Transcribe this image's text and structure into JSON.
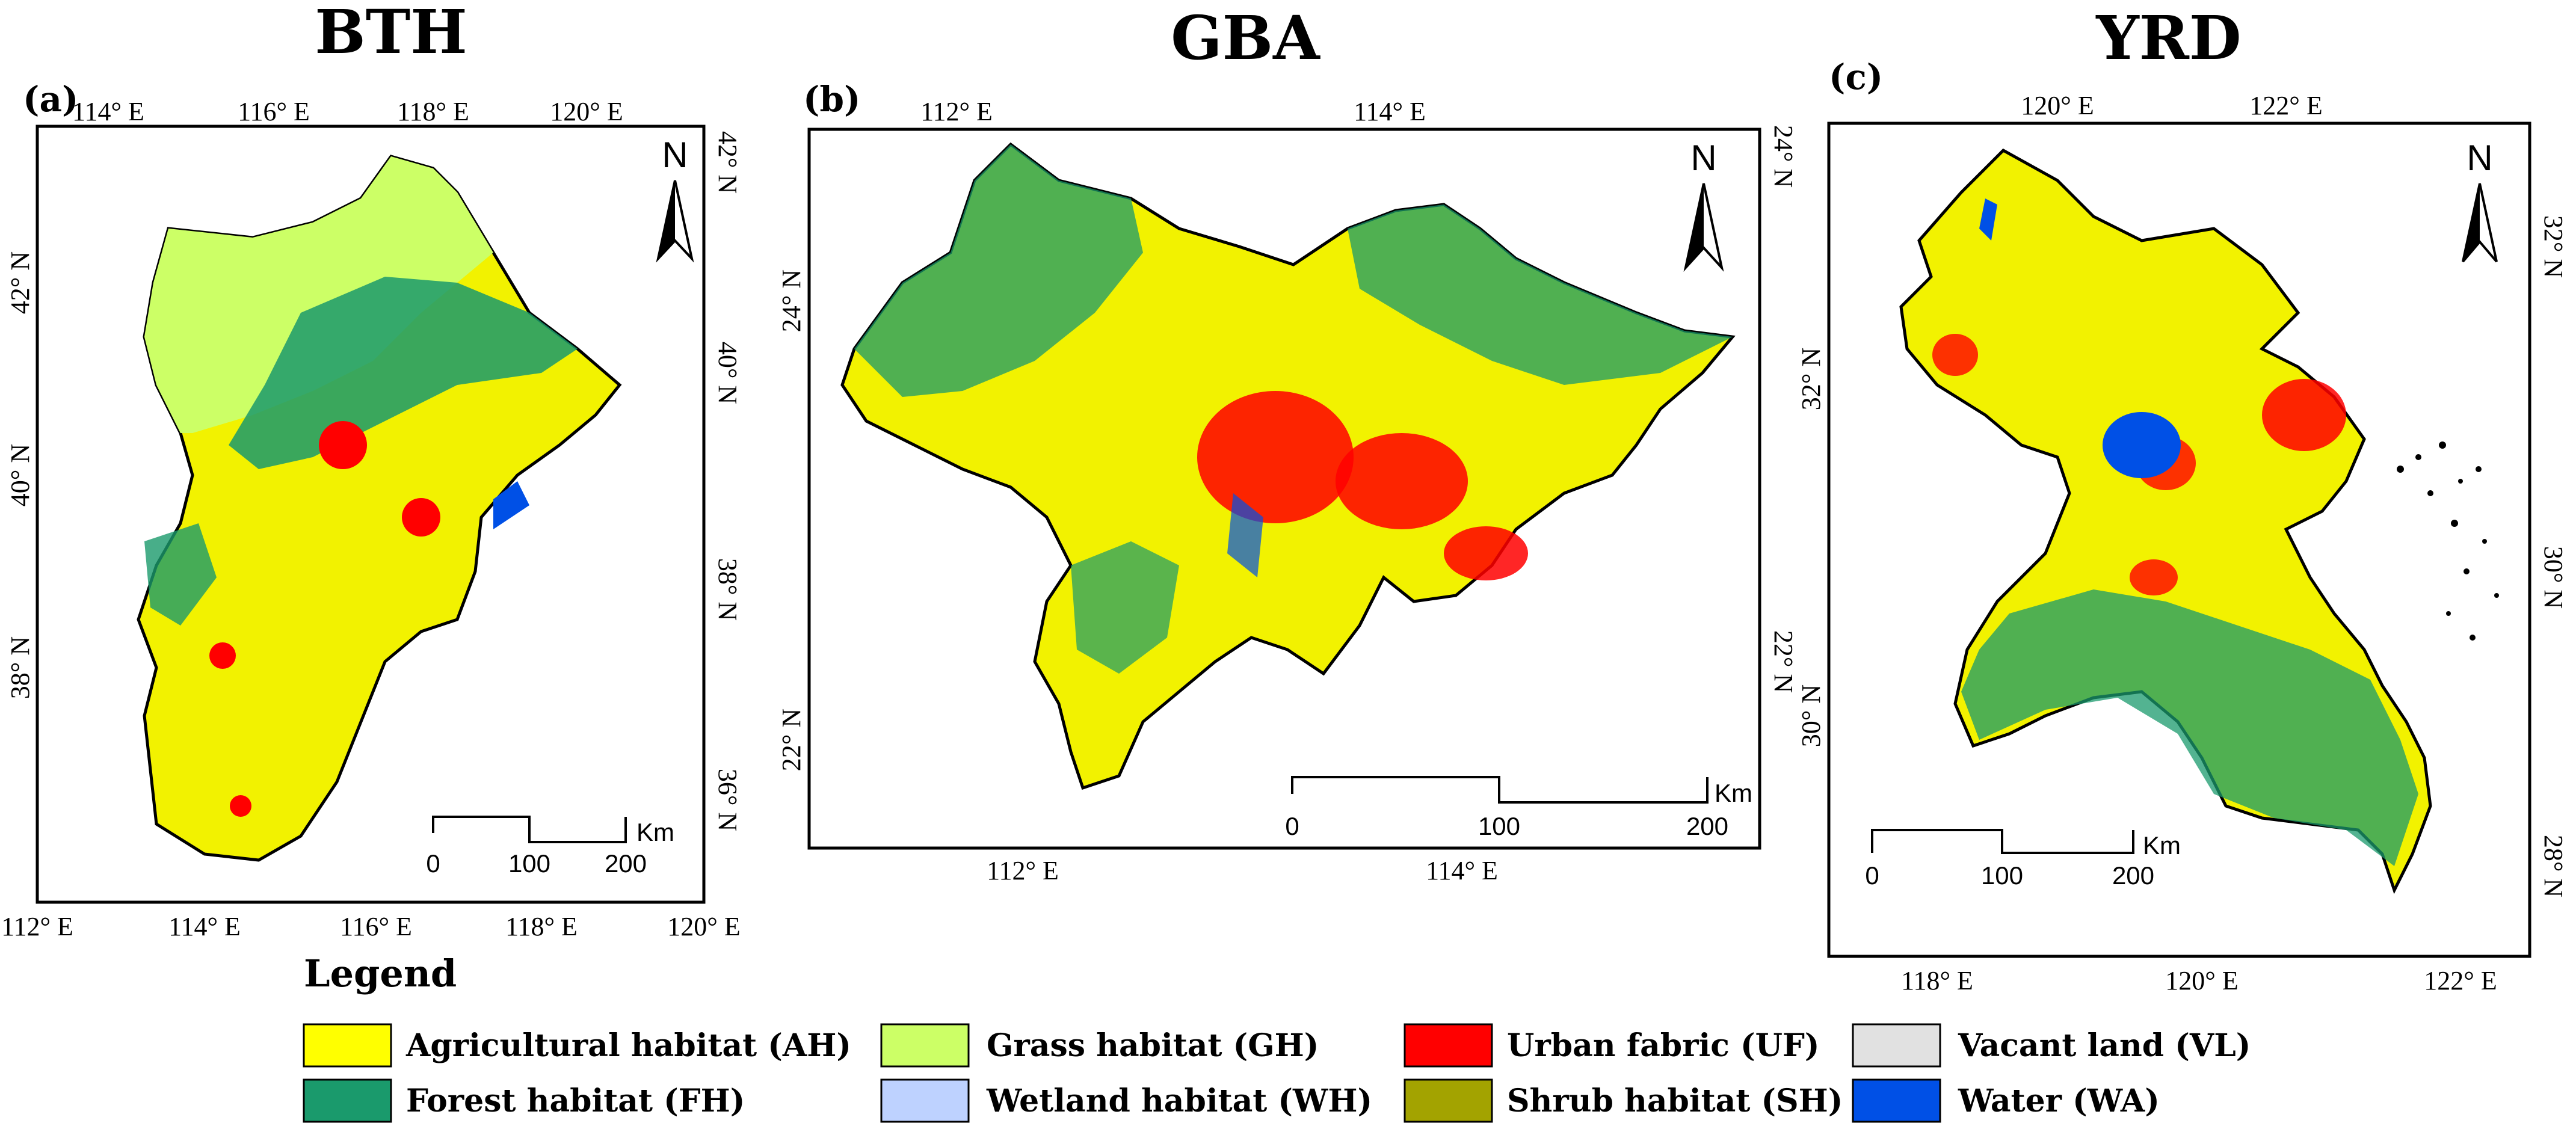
{
  "regions": [
    {
      "title": "BTH",
      "label": "(a)",
      "top_ticks": [
        "114° E",
        "116° E",
        "118° E",
        "120° E"
      ],
      "bottom_ticks": [
        "112° E",
        "114° E",
        "116° E",
        "118° E",
        "120° E"
      ],
      "left_ticks": [
        "42° N",
        "40° N",
        "38° N"
      ],
      "right_ticks": [
        "42° N",
        "40° N",
        "38° N",
        "36° N"
      ],
      "north": "N",
      "scale": {
        "labels": [
          "0",
          "100",
          "200"
        ],
        "unit": "Km"
      }
    },
    {
      "title": "GBA",
      "label": "(b)",
      "top_ticks": [
        "112° E",
        "114° E"
      ],
      "bottom_ticks": [
        "112° E",
        "114° E"
      ],
      "left_ticks": [
        "24° N",
        "22° N"
      ],
      "right_ticks": [
        "24° N",
        "22° N"
      ],
      "north": "N",
      "scale": {
        "labels": [
          "0",
          "100",
          "200"
        ],
        "unit": "Km"
      }
    },
    {
      "title": "YRD",
      "label": "(c)",
      "top_ticks": [
        "120° E",
        "122° E"
      ],
      "bottom_ticks": [
        "118° E",
        "120° E",
        "122° E"
      ],
      "left_ticks": [
        "32° N",
        "30° N"
      ],
      "right_ticks": [
        "32° N",
        "30° N",
        "28° N"
      ],
      "north": "N",
      "scale": {
        "labels": [
          "0",
          "100",
          "200"
        ],
        "unit": "Km"
      }
    }
  ],
  "legend": {
    "title": "Legend",
    "items": [
      {
        "label": "Agricultural habitat (AH)",
        "color": "#FFFF00"
      },
      {
        "label": "Forest habitat (FH)",
        "color": "#1A9A6C"
      },
      {
        "label": "Grass habitat (GH)",
        "color": "#CCFF66"
      },
      {
        "label": "Wetland habitat (WH)",
        "color": "#BED2FF"
      },
      {
        "label": "Urban fabric (UF)",
        "color": "#FF0000"
      },
      {
        "label": "Shrub habitat (SH)",
        "color": "#A3A300"
      },
      {
        "label": "Vacant land (VL)",
        "color": "#E1E1E1"
      },
      {
        "label": "Water (WA)",
        "color": "#0050E6"
      }
    ]
  }
}
